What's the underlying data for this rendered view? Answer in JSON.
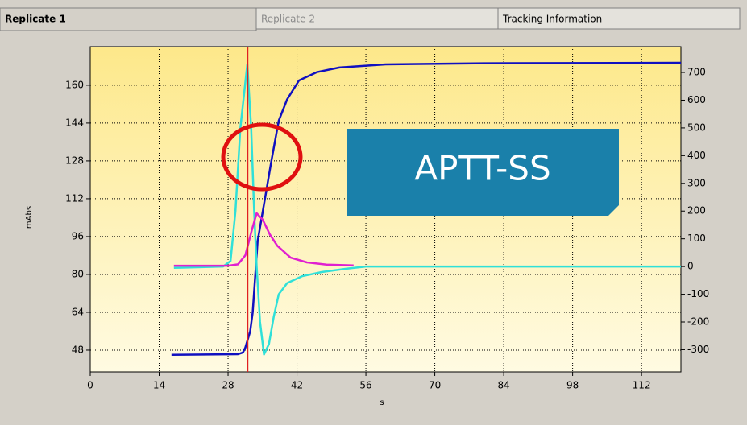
{
  "tabs": [
    "Replicate 1",
    "Replicate 2",
    "Tracking Information"
  ],
  "chart_data": {
    "type": "line",
    "xlabel": "s",
    "ylabel": "mAbs",
    "annotation": "APTT-SS",
    "marker_x": 32,
    "xlim": [
      0,
      120
    ],
    "xticks": [
      0,
      14,
      28,
      42,
      56,
      70,
      84,
      98,
      112
    ],
    "ylim": [
      38.8,
      176.3
    ],
    "yticks": [
      48,
      64,
      80,
      96,
      112,
      128,
      144,
      160
    ],
    "y2lim": [
      -380,
      793
    ],
    "y2ticks": [
      -300,
      -200,
      -100,
      0,
      100,
      200,
      300,
      400,
      500,
      600,
      700
    ],
    "grid": true,
    "series": [
      {
        "color": "#1010c0",
        "axis": "y",
        "x": [
          16.5,
          30,
          31,
          31.5,
          32.5,
          33,
          34,
          35.5,
          36.8,
          38.3,
          40,
          42.4,
          46,
          50.6,
          60,
          80,
          120
        ],
        "values": [
          46,
          46.3,
          47,
          49,
          56,
          64,
          94,
          112,
          128,
          145,
          154,
          162,
          165.5,
          167.5,
          168.8,
          169.3,
          169.5
        ]
      },
      {
        "color": "#30e0d8",
        "axis": "y2",
        "x": [
          17,
          27,
          28.5,
          29.5,
          30.5,
          31.9,
          32.7,
          33.3,
          33.8,
          34.5,
          35.3,
          36.3,
          37.3,
          38.3,
          40,
          43,
          47,
          52,
          56,
          120
        ],
        "values": [
          -5,
          0,
          20,
          200,
          500,
          729,
          500,
          200,
          0,
          -200,
          -317,
          -280,
          -180,
          -100,
          -60,
          -35,
          -20,
          -8,
          0,
          0
        ]
      },
      {
        "color": "#e020d0",
        "axis": "y2",
        "x": [
          17,
          28,
          30,
          31.5,
          32.8,
          33.8,
          35,
          36.5,
          38,
          40.7,
          44,
          48,
          53.5
        ],
        "values": [
          3,
          3,
          8,
          40,
          130,
          192,
          170,
          115,
          75,
          32,
          15,
          7,
          4
        ]
      }
    ]
  }
}
